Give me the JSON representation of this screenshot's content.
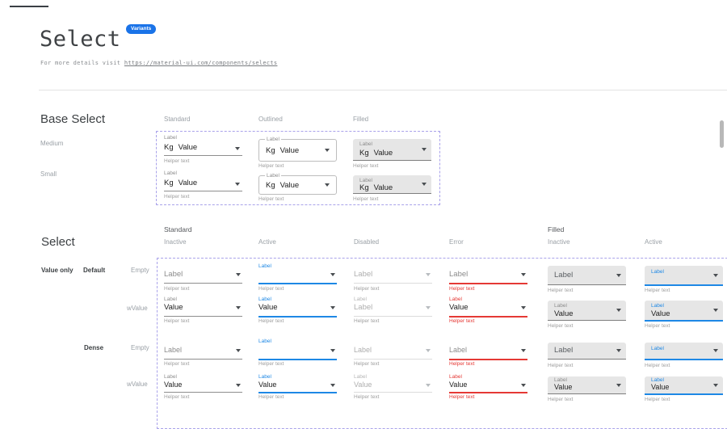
{
  "page": {
    "title": "Select",
    "badge": "Variants",
    "subtitle_prefix": "For more details visit ",
    "subtitle_link": "https://material-ui.com/components/selects"
  },
  "colors": {
    "accent_blue": "#1E88E5",
    "error_red": "#E53935",
    "badge_blue": "#1A73E8",
    "filled_bg": "#E6E6E6",
    "dashed_outline": "#A9A2EA"
  },
  "base_select": {
    "heading": "Base Select",
    "columns": [
      "Standard",
      "Outlined",
      "Filled"
    ],
    "rows": [
      "Medium",
      "Small"
    ],
    "cells": [
      {
        "variant": "standard",
        "size": "medium",
        "label": "Label",
        "adornment": "Kg",
        "value": "Value",
        "helper": "Helper text"
      },
      {
        "variant": "outlined",
        "size": "medium",
        "label": "Label",
        "adornment": "Kg",
        "value": "Value",
        "helper": "Helper text"
      },
      {
        "variant": "filled",
        "size": "medium",
        "label": "Label",
        "adornment": "Kg",
        "value": "Value",
        "helper": "Helper text"
      },
      {
        "variant": "standard",
        "size": "small",
        "label": "Label",
        "adornment": "Kg",
        "value": "Value",
        "helper": "Helper text"
      },
      {
        "variant": "outlined",
        "size": "small",
        "label": "Label",
        "adornment": "Kg",
        "value": "Value",
        "helper": "Helper text"
      },
      {
        "variant": "filled",
        "size": "small",
        "label": "Label",
        "adornment": "Kg",
        "value": "Value",
        "helper": "Helper text"
      }
    ]
  },
  "matrix": {
    "heading": "Select",
    "groups": [
      "Standard",
      "Filled"
    ],
    "columns": [
      "Inactive",
      "Active",
      "Disabled",
      "Error",
      "Inactive",
      "Active"
    ],
    "row_labels": [
      {
        "text": "Value only",
        "strong": true
      },
      {
        "text": "Default",
        "strong": true
      },
      {
        "text": "Empty",
        "strong": false
      },
      {
        "text": "wValue",
        "strong": false
      },
      {
        "text": "Dense",
        "strong": true
      },
      {
        "text": "Empty",
        "strong": false
      },
      {
        "text": "wValue",
        "strong": false
      }
    ],
    "cells": [
      {
        "variant": "standard",
        "state": "inactive",
        "mode": "empty",
        "label": "Label",
        "value": "",
        "helper": "Helper text"
      },
      {
        "variant": "standard",
        "state": "active",
        "mode": "empty",
        "label": "Label",
        "value": "",
        "helper": "Helper text"
      },
      {
        "variant": "standard",
        "state": "disabled",
        "mode": "empty",
        "label": "Label",
        "value": "",
        "helper": "Helper text"
      },
      {
        "variant": "standard",
        "state": "error",
        "mode": "empty",
        "label": "Label",
        "value": "",
        "helper": "Helper text"
      },
      {
        "variant": "filled",
        "state": "inactive",
        "mode": "empty",
        "label": "Label",
        "value": "",
        "helper": "Helper text"
      },
      {
        "variant": "filled",
        "state": "active",
        "mode": "empty",
        "label": "Label",
        "value": "",
        "helper": "Helper text"
      },
      {
        "variant": "standard",
        "state": "inactive",
        "mode": "value",
        "label": "Label",
        "value": "Value",
        "helper": "Helper text"
      },
      {
        "variant": "standard",
        "state": "active",
        "mode": "value",
        "label": "Label",
        "value": "Value",
        "helper": "Helper text"
      },
      {
        "variant": "standard",
        "state": "disabled",
        "mode": "value",
        "label": "Label",
        "value": "Label",
        "helper": "Helper text"
      },
      {
        "variant": "standard",
        "state": "error",
        "mode": "value",
        "label": "Label",
        "value": "Value",
        "helper": "Helper text"
      },
      {
        "variant": "filled",
        "state": "inactive",
        "mode": "value",
        "label": "Label",
        "value": "Value",
        "helper": "Helper text"
      },
      {
        "variant": "filled",
        "state": "active",
        "mode": "value",
        "label": "Label",
        "value": "Value",
        "helper": "Helper text"
      },
      {
        "variant": "standard",
        "state": "inactive",
        "mode": "empty",
        "label": "Label",
        "value": "",
        "helper": "Helper text"
      },
      {
        "variant": "standard",
        "state": "active",
        "mode": "empty",
        "label": "Label",
        "value": "",
        "helper": "Helper text"
      },
      {
        "variant": "standard",
        "state": "disabled",
        "mode": "empty",
        "label": "Label",
        "value": "",
        "helper": "Helper text"
      },
      {
        "variant": "standard",
        "state": "error",
        "mode": "empty",
        "label": "Label",
        "value": "",
        "helper": "Helper text"
      },
      {
        "variant": "filled",
        "state": "inactive",
        "mode": "empty",
        "label": "Label",
        "value": "",
        "helper": "Helper text"
      },
      {
        "variant": "filled",
        "state": "active",
        "mode": "empty",
        "label": "Label",
        "value": "",
        "helper": "Helper text"
      },
      {
        "variant": "standard",
        "state": "inactive",
        "mode": "value",
        "label": "Label",
        "value": "Value",
        "helper": "Helper text"
      },
      {
        "variant": "standard",
        "state": "active",
        "mode": "value",
        "label": "Label",
        "value": "Value",
        "helper": "Helper text"
      },
      {
        "variant": "standard",
        "state": "disabled",
        "mode": "value",
        "label": "Label",
        "value": "Value",
        "helper": "Helper text"
      },
      {
        "variant": "standard",
        "state": "error",
        "mode": "value",
        "label": "Label",
        "value": "Value",
        "helper": "Helper text"
      },
      {
        "variant": "filled",
        "state": "inactive",
        "mode": "value",
        "label": "Label",
        "value": "Value",
        "helper": "Helper text"
      },
      {
        "variant": "filled",
        "state": "active",
        "mode": "value",
        "label": "Label",
        "value": "Value",
        "helper": "Helper text"
      }
    ]
  }
}
